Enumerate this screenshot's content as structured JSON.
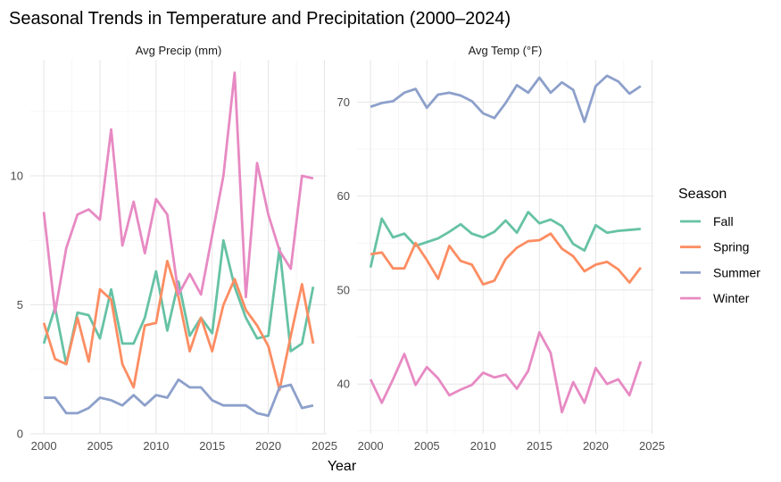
{
  "title": "Seasonal Trends in Temperature and Precipitation (2000–2024)",
  "chart_data": {
    "type": "line",
    "title": "Seasonal Trends in Temperature and Precipitation (2000–2024)",
    "xlabel": "Year",
    "legend_title": "Season",
    "legend_position": "right",
    "grid": true,
    "x": [
      2000,
      2001,
      2002,
      2003,
      2004,
      2005,
      2006,
      2007,
      2008,
      2009,
      2010,
      2011,
      2012,
      2013,
      2014,
      2015,
      2016,
      2017,
      2018,
      2019,
      2020,
      2021,
      2022,
      2023,
      2024
    ],
    "x_ticks": [
      2000,
      2005,
      2010,
      2015,
      2020,
      2025
    ],
    "x_tick_labels": [
      "2000",
      "2005",
      "2010",
      "2015",
      "2020",
      "2025"
    ],
    "colors": {
      "Fall": "#66c2a5",
      "Spring": "#fc8d62",
      "Summer": "#8da0cb",
      "Winter": "#e78ac3"
    },
    "legend": [
      "Fall",
      "Spring",
      "Summer",
      "Winter"
    ],
    "panels": [
      {
        "strip_label": "Avg Precip (mm)",
        "ylim": [
          0,
          14.5
        ],
        "y_ticks": [
          0,
          5,
          10
        ],
        "y_tick_labels": [
          "0",
          "5",
          "10"
        ],
        "series": [
          {
            "name": "Fall",
            "values": [
              3.5,
              4.9,
              2.7,
              4.7,
              4.6,
              3.7,
              5.6,
              3.5,
              3.5,
              4.5,
              6.3,
              4.0,
              5.9,
              3.8,
              4.5,
              3.9,
              7.5,
              5.7,
              4.5,
              3.7,
              3.8,
              7.2,
              3.2,
              3.5,
              5.7
            ]
          },
          {
            "name": "Spring",
            "values": [
              4.3,
              2.9,
              2.7,
              4.5,
              2.8,
              5.6,
              5.2,
              2.7,
              1.8,
              4.2,
              4.3,
              6.7,
              5.3,
              3.2,
              4.5,
              3.2,
              5.0,
              6.0,
              4.8,
              4.2,
              3.4,
              1.7,
              3.8,
              5.8,
              3.5
            ]
          },
          {
            "name": "Summer",
            "values": [
              1.4,
              1.4,
              0.8,
              0.8,
              1.0,
              1.4,
              1.3,
              1.1,
              1.5,
              1.1,
              1.5,
              1.4,
              2.1,
              1.8,
              1.8,
              1.3,
              1.1,
              1.1,
              1.1,
              0.8,
              0.7,
              1.8,
              1.9,
              1.0,
              1.1
            ]
          },
          {
            "name": "Winter",
            "values": [
              8.6,
              4.7,
              7.2,
              8.5,
              8.7,
              8.3,
              11.8,
              7.3,
              9.0,
              7.0,
              9.1,
              8.5,
              5.4,
              6.2,
              5.4,
              7.7,
              10.0,
              14.0,
              5.3,
              10.5,
              8.5,
              7.1,
              6.4,
              10.0,
              9.9
            ]
          }
        ]
      },
      {
        "strip_label": "Avg Temp (°F)",
        "ylim": [
          34.7,
          74.5
        ],
        "y_ticks": [
          40,
          50,
          60,
          70
        ],
        "y_tick_labels": [
          "40",
          "50",
          "60",
          "70"
        ],
        "series": [
          {
            "name": "Fall",
            "values": [
              52.4,
              57.6,
              55.6,
              56.0,
              54.7,
              55.1,
              55.5,
              56.2,
              57.0,
              56.0,
              55.6,
              56.2,
              57.4,
              56.1,
              58.3,
              57.1,
              57.5,
              56.8,
              54.9,
              54.2,
              56.9,
              56.1,
              56.3,
              56.4,
              56.5
            ]
          },
          {
            "name": "Spring",
            "values": [
              53.8,
              54.0,
              52.3,
              52.3,
              55.0,
              53.2,
              51.2,
              54.7,
              53.1,
              52.7,
              50.6,
              51.0,
              53.3,
              54.5,
              55.2,
              55.3,
              56.0,
              54.4,
              53.6,
              52.0,
              52.7,
              53.0,
              52.2,
              50.8,
              52.4
            ]
          },
          {
            "name": "Summer",
            "values": [
              69.5,
              69.9,
              70.1,
              71.0,
              71.4,
              69.4,
              70.8,
              71.0,
              70.7,
              70.1,
              68.8,
              68.3,
              69.9,
              71.8,
              71.0,
              72.6,
              71.0,
              72.1,
              71.3,
              67.9,
              71.7,
              72.8,
              72.2,
              70.9,
              71.7
            ]
          },
          {
            "name": "Winter",
            "values": [
              40.5,
              38.0,
              40.5,
              43.2,
              39.9,
              41.8,
              40.6,
              38.8,
              39.4,
              39.9,
              41.2,
              40.7,
              41.0,
              39.5,
              41.4,
              45.5,
              43.3,
              37.0,
              40.2,
              38.0,
              41.7,
              40.0,
              40.5,
              38.8,
              42.4
            ]
          }
        ]
      }
    ]
  }
}
